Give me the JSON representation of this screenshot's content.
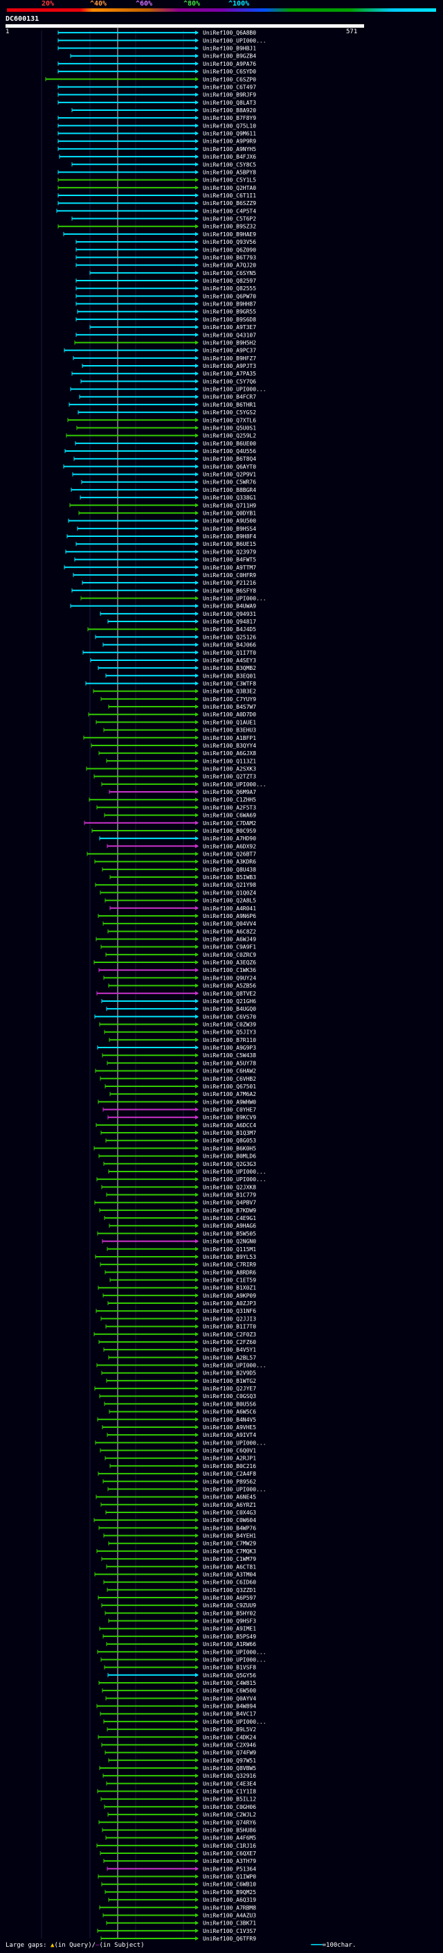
{
  "header": {
    "scale_ticks": [
      "20%",
      "^40%",
      "^60%",
      "^80%",
      "^100%"
    ],
    "query_id": "DC600131",
    "query_start": "1",
    "query_end": "571"
  },
  "footer": {
    "large_gaps": "Large gaps:",
    "in_query": "(in Query)/",
    "in_subject": "(in Subject)",
    "scale_legend": "=100char."
  },
  "colors": {
    "cyan": "#00e5ff",
    "green": "#33cc00",
    "magenta": "#cc33cc",
    "background": "#000010"
  },
  "hits": [
    {
      "label": "UniRef100_Q6A8B0",
      "color": "cyan"
    },
    {
      "label": "UniRef100_UPI000...",
      "color": "cyan"
    },
    {
      "label": "UniRef100_B9HBJ1",
      "color": "cyan"
    },
    {
      "label": "UniRef100_B9GZB4",
      "color": "cyan"
    },
    {
      "label": "UniRef100_A9PA76",
      "color": "cyan"
    },
    {
      "label": "UniRef100_C6SYD0",
      "color": "cyan"
    },
    {
      "label": "UniRef100_C6SZP0",
      "color": "green"
    },
    {
      "label": "UniRef100_C6T497",
      "color": "cyan"
    },
    {
      "label": "UniRef100_B9RJF9",
      "color": "cyan"
    },
    {
      "label": "UniRef100_Q8LAT3",
      "color": "cyan"
    },
    {
      "label": "UniRef100_B8A920",
      "color": "cyan"
    },
    {
      "label": "UniRef100_B7F8Y9",
      "color": "cyan"
    },
    {
      "label": "UniRef100_Q75L10",
      "color": "cyan"
    },
    {
      "label": "UniRef100_Q9M611",
      "color": "cyan"
    },
    {
      "label": "UniRef100_A9P9R9",
      "color": "cyan"
    },
    {
      "label": "UniRef100_A9NYH5",
      "color": "cyan"
    },
    {
      "label": "UniRef100_B4FJX6",
      "color": "cyan"
    },
    {
      "label": "UniRef100_C5Y8C5",
      "color": "cyan"
    },
    {
      "label": "UniRef100_A5BPY8",
      "color": "cyan"
    },
    {
      "label": "UniRef100_C5Y1L5",
      "color": "green"
    },
    {
      "label": "UniRef100_Q2HTA0",
      "color": "green"
    },
    {
      "label": "UniRef100_C6T1I1",
      "color": "cyan"
    },
    {
      "label": "UniRef100_B6SZZ9",
      "color": "cyan"
    },
    {
      "label": "UniRef100_C4P5T4",
      "color": "cyan"
    },
    {
      "label": "UniRef100_C5T6P2",
      "color": "cyan"
    },
    {
      "label": "UniRef100_B9SZ32",
      "color": "green"
    },
    {
      "label": "UniRef100_B9HAE9",
      "color": "cyan"
    },
    {
      "label": "UniRef100_Q93V56",
      "color": "cyan"
    },
    {
      "label": "UniRef100_Q6Z090",
      "color": "cyan"
    },
    {
      "label": "UniRef100_B6T793",
      "color": "cyan"
    },
    {
      "label": "UniRef100_A7QJ20",
      "color": "cyan"
    },
    {
      "label": "UniRef100_C6SYN5",
      "color": "cyan"
    },
    {
      "label": "UniRef100_Q82597",
      "color": "cyan"
    },
    {
      "label": "UniRef100_Q82555",
      "color": "cyan"
    },
    {
      "label": "UniRef100_Q6PW70",
      "color": "cyan"
    },
    {
      "label": "UniRef100_B9HH87",
      "color": "cyan"
    },
    {
      "label": "UniRef100_B9GR55",
      "color": "cyan"
    },
    {
      "label": "UniRef100_B9S6D8",
      "color": "cyan"
    },
    {
      "label": "UniRef100_A9T3E7",
      "color": "cyan"
    },
    {
      "label": "UniRef100_Q43107",
      "color": "cyan"
    },
    {
      "label": "UniRef100_B9H5H2",
      "color": "green"
    },
    {
      "label": "UniRef100_A9PC37",
      "color": "cyan"
    },
    {
      "label": "UniRef100_B9HFZ7",
      "color": "cyan"
    },
    {
      "label": "UniRef100_A9PJT3",
      "color": "cyan"
    },
    {
      "label": "UniRef100_A7PA35",
      "color": "cyan"
    },
    {
      "label": "UniRef100_C5Y7Q6",
      "color": "cyan"
    },
    {
      "label": "UniRef100_UPI000...",
      "color": "cyan"
    },
    {
      "label": "UniRef100_B4FCR7",
      "color": "cyan"
    },
    {
      "label": "UniRef100_B6THR1",
      "color": "cyan"
    },
    {
      "label": "UniRef100_C5YGS2",
      "color": "cyan"
    },
    {
      "label": "UniRef100_Q7XTL6",
      "color": "green"
    },
    {
      "label": "UniRef100_Q5U0S1",
      "color": "green"
    },
    {
      "label": "UniRef100_Q259L2",
      "color": "green"
    },
    {
      "label": "UniRef100_B6UE00",
      "color": "cyan"
    },
    {
      "label": "UniRef100_Q4U556",
      "color": "cyan"
    },
    {
      "label": "UniRef100_B6T8Q4",
      "color": "cyan"
    },
    {
      "label": "UniRef100_Q6AYT0",
      "color": "cyan"
    },
    {
      "label": "UniRef100_Q2P9V1",
      "color": "cyan"
    },
    {
      "label": "UniRef100_C5WR76",
      "color": "cyan"
    },
    {
      "label": "UniRef100_B8BGR4",
      "color": "cyan"
    },
    {
      "label": "UniRef100_Q338G1",
      "color": "cyan"
    },
    {
      "label": "UniRef100_Q711H9",
      "color": "green"
    },
    {
      "label": "UniRef100_Q0DYB1",
      "color": "green"
    },
    {
      "label": "UniRef100_A9U500",
      "color": "cyan"
    },
    {
      "label": "UniRef100_B9HSS4",
      "color": "cyan"
    },
    {
      "label": "UniRef100_B9H8F4",
      "color": "cyan"
    },
    {
      "label": "UniRef100_B6UE15",
      "color": "cyan"
    },
    {
      "label": "UniRef100_Q23979",
      "color": "cyan"
    },
    {
      "label": "UniRef100_B4FWT5",
      "color": "cyan"
    },
    {
      "label": "UniRef100_A9TTM7",
      "color": "cyan"
    },
    {
      "label": "UniRef100_C0HFR9",
      "color": "cyan"
    },
    {
      "label": "UniRef100_P21216",
      "color": "cyan"
    },
    {
      "label": "UniRef100_B6SFY8",
      "color": "cyan"
    },
    {
      "label": "UniRef100_UPI000...",
      "color": "green"
    },
    {
      "label": "UniRef100_B4UWA9",
      "color": "cyan"
    },
    {
      "label": "UniRef100_Q94931",
      "color": "cyan"
    },
    {
      "label": "UniRef100_Q94817",
      "color": "cyan"
    },
    {
      "label": "UniRef100_B4J4D5",
      "color": "green"
    },
    {
      "label": "UniRef100_Q25126",
      "color": "cyan"
    },
    {
      "label": "UniRef100_B4J066",
      "color": "cyan"
    },
    {
      "label": "UniRef100_Q1I7T0",
      "color": "cyan"
    },
    {
      "label": "UniRef100_A4SEY3",
      "color": "cyan"
    },
    {
      "label": "UniRef100_B3QMB2",
      "color": "cyan"
    },
    {
      "label": "UniRef100_B3EQ01",
      "color": "cyan"
    },
    {
      "label": "UniRef100_C3WTF8",
      "color": "cyan"
    },
    {
      "label": "UniRef100_Q3B3E2",
      "color": "green"
    },
    {
      "label": "UniRef100_C7YUY9",
      "color": "green"
    },
    {
      "label": "UniRef100_B4S7W7",
      "color": "green"
    },
    {
      "label": "UniRef100_A0D7D0",
      "color": "green"
    },
    {
      "label": "UniRef100_Q1AUE1",
      "color": "green"
    },
    {
      "label": "UniRef100_B3EHU3",
      "color": "green"
    },
    {
      "label": "UniRef100_A1BFP1",
      "color": "green"
    },
    {
      "label": "UniRef100_B3QYY4",
      "color": "green"
    },
    {
      "label": "UniRef100_A6GJX8",
      "color": "green"
    },
    {
      "label": "UniRef100_Q113Z1",
      "color": "green"
    },
    {
      "label": "UniRef100_A2SXK3",
      "color": "green"
    },
    {
      "label": "UniRef100_Q2TZT3",
      "color": "green"
    },
    {
      "label": "UniRef100_UPI000...",
      "color": "green"
    },
    {
      "label": "UniRef100_Q6M9A7",
      "color": "magenta"
    },
    {
      "label": "UniRef100_C1ZHH5",
      "color": "green"
    },
    {
      "label": "UniRef100_A2F5T3",
      "color": "green"
    },
    {
      "label": "UniRef100_C6WA69",
      "color": "green"
    },
    {
      "label": "UniRef100_C7DAM2",
      "color": "magenta"
    },
    {
      "label": "UniRef100_B0C9S9",
      "color": "green"
    },
    {
      "label": "UniRef100_A7HD90",
      "color": "cyan"
    },
    {
      "label": "UniRef100_A6DX92",
      "color": "magenta"
    },
    {
      "label": "UniRef100_Q26BT7",
      "color": "green"
    },
    {
      "label": "UniRef100_A3KDR6",
      "color": "green"
    },
    {
      "label": "UniRef100_Q8U438",
      "color": "green"
    },
    {
      "label": "UniRef100_B5IWB3",
      "color": "green"
    },
    {
      "label": "UniRef100_Q21Y98",
      "color": "green"
    },
    {
      "label": "UniRef100_Q1Q0Z4",
      "color": "green"
    },
    {
      "label": "UniRef100_Q2A8L5",
      "color": "green"
    },
    {
      "label": "UniRef100_A4R041",
      "color": "magenta"
    },
    {
      "label": "UniRef100_A9N6P6",
      "color": "green"
    },
    {
      "label": "UniRef100_Q04VV4",
      "color": "green"
    },
    {
      "label": "UniRef100_A6C8Z2",
      "color": "green"
    },
    {
      "label": "UniRef100_A6WJ49",
      "color": "green"
    },
    {
      "label": "UniRef100_C9A9F1",
      "color": "green"
    },
    {
      "label": "UniRef100_C0ZRC9",
      "color": "green"
    },
    {
      "label": "UniRef100_A3EQZ6",
      "color": "green"
    },
    {
      "label": "UniRef100_C1WK36",
      "color": "magenta"
    },
    {
      "label": "UniRef100_Q9UY24",
      "color": "green"
    },
    {
      "label": "UniRef100_A5ZB56",
      "color": "green"
    },
    {
      "label": "UniRef100_Q8TVE2",
      "color": "magenta"
    },
    {
      "label": "UniRef100_Q21GH6",
      "color": "cyan"
    },
    {
      "label": "UniRef100_B4UGQ0",
      "color": "cyan"
    },
    {
      "label": "UniRef100_C6VS70",
      "color": "cyan"
    },
    {
      "label": "UniRef100_C0ZW39",
      "color": "green"
    },
    {
      "label": "UniRef100_Q5JIY3",
      "color": "green"
    },
    {
      "label": "UniRef100_B7R110",
      "color": "green"
    },
    {
      "label": "UniRef100_A9G9P3",
      "color": "cyan"
    },
    {
      "label": "UniRef100_C5W438",
      "color": "green"
    },
    {
      "label": "UniRef100_A5UY78",
      "color": "green"
    },
    {
      "label": "UniRef100_C6HAW2",
      "color": "green"
    },
    {
      "label": "UniRef100_C6VHB2",
      "color": "green"
    },
    {
      "label": "UniRef100_Q67501",
      "color": "green"
    },
    {
      "label": "UniRef100_A7M6A2",
      "color": "green"
    },
    {
      "label": "UniRef100_A9WHW0",
      "color": "green"
    },
    {
      "label": "UniRef100_C0YHE7",
      "color": "magenta"
    },
    {
      "label": "UniRef100_B9KCV9",
      "color": "magenta"
    },
    {
      "label": "UniRef100_A6DCC4",
      "color": "green"
    },
    {
      "label": "UniRef100_B1Q3M7",
      "color": "green"
    },
    {
      "label": "UniRef100_Q8G053",
      "color": "green"
    },
    {
      "label": "UniRef100_B6K0H5",
      "color": "green"
    },
    {
      "label": "UniRef100_B0MLD6",
      "color": "green"
    },
    {
      "label": "UniRef100_Q2G3G3",
      "color": "green"
    },
    {
      "label": "UniRef100_UPI000...",
      "color": "green"
    },
    {
      "label": "UniRef100_UPI000...",
      "color": "green"
    },
    {
      "label": "UniRef100_Q2JXK8",
      "color": "green"
    },
    {
      "label": "UniRef100_B1C779",
      "color": "green"
    },
    {
      "label": "UniRef100_Q4PBV7",
      "color": "green"
    },
    {
      "label": "UniRef100_B7KDW9",
      "color": "green"
    },
    {
      "label": "UniRef100_C4E9G1",
      "color": "green"
    },
    {
      "label": "UniRef100_A9HAG6",
      "color": "green"
    },
    {
      "label": "UniRef100_B5W505",
      "color": "green"
    },
    {
      "label": "UniRef100_Q2NGN0",
      "color": "magenta"
    },
    {
      "label": "UniRef100_Q115M1",
      "color": "green"
    },
    {
      "label": "UniRef100_B9YL53",
      "color": "green"
    },
    {
      "label": "UniRef100_C7RIR9",
      "color": "green"
    },
    {
      "label": "UniRef100_A8RDR6",
      "color": "green"
    },
    {
      "label": "UniRef100_C1ET59",
      "color": "green"
    },
    {
      "label": "UniRef100_B1X0Z1",
      "color": "green"
    },
    {
      "label": "UniRef100_A9KP09",
      "color": "green"
    },
    {
      "label": "UniRef100_A0ZJP3",
      "color": "green"
    },
    {
      "label": "UniRef100_Q31NF6",
      "color": "green"
    },
    {
      "label": "UniRef100_Q2JJI3",
      "color": "green"
    },
    {
      "label": "UniRef100_B1I7T0",
      "color": "green"
    },
    {
      "label": "UniRef100_C2F0Z3",
      "color": "green"
    },
    {
      "label": "UniRef100_C2FZ60",
      "color": "green"
    },
    {
      "label": "UniRef100_B4V5Y1",
      "color": "green"
    },
    {
      "label": "UniRef100_A2BL57",
      "color": "green"
    },
    {
      "label": "UniRef100_UPI000...",
      "color": "green"
    },
    {
      "label": "UniRef100_B2V9D5",
      "color": "green"
    },
    {
      "label": "UniRef100_B1WTG2",
      "color": "green"
    },
    {
      "label": "UniRef100_Q2JYE7",
      "color": "green"
    },
    {
      "label": "UniRef100_C0GSQ3",
      "color": "green"
    },
    {
      "label": "UniRef100_B0U5S6",
      "color": "green"
    },
    {
      "label": "UniRef100_A6W5C6",
      "color": "green"
    },
    {
      "label": "UniRef100_B4N4V5",
      "color": "green"
    },
    {
      "label": "UniRef100_A9VHE5",
      "color": "green"
    },
    {
      "label": "UniRef100_A9IVT4",
      "color": "green"
    },
    {
      "label": "UniRef100_UPI000...",
      "color": "green"
    },
    {
      "label": "UniRef100_C6Q0V1",
      "color": "green"
    },
    {
      "label": "UniRef100_A2RJP1",
      "color": "green"
    },
    {
      "label": "UniRef100_B0C216",
      "color": "green"
    },
    {
      "label": "UniRef100_C2A4F8",
      "color": "green"
    },
    {
      "label": "UniRef100_P89562",
      "color": "green"
    },
    {
      "label": "UniRef100_UPI000...",
      "color": "green"
    },
    {
      "label": "UniRef100_A6NE45",
      "color": "green"
    },
    {
      "label": "UniRef100_A6YRZ1",
      "color": "green"
    },
    {
      "label": "UniRef100_C0X4G3",
      "color": "green"
    },
    {
      "label": "UniRef100_C0W604",
      "color": "green"
    },
    {
      "label": "UniRef100_B4WP76",
      "color": "green"
    },
    {
      "label": "UniRef100_B4YEH1",
      "color": "green"
    },
    {
      "label": "UniRef100_C7MW29",
      "color": "green"
    },
    {
      "label": "UniRef100_C7MQK3",
      "color": "green"
    },
    {
      "label": "UniRef100_C1WM79",
      "color": "green"
    },
    {
      "label": "UniRef100_A6CT81",
      "color": "green"
    },
    {
      "label": "UniRef100_A3TM04",
      "color": "green"
    },
    {
      "label": "UniRef100_C6ID60",
      "color": "green"
    },
    {
      "label": "UniRef100_Q3ZZD1",
      "color": "green"
    },
    {
      "label": "UniRef100_A6P597",
      "color": "green"
    },
    {
      "label": "UniRef100_C9ZUU9",
      "color": "green"
    },
    {
      "label": "UniRef100_B5HY02",
      "color": "green"
    },
    {
      "label": "UniRef100_Q9HSF3",
      "color": "green"
    },
    {
      "label": "UniRef100_A9IME1",
      "color": "green"
    },
    {
      "label": "UniRef100_B5PS49",
      "color": "green"
    },
    {
      "label": "UniRef100_A1RW66",
      "color": "green"
    },
    {
      "label": "UniRef100_UPI000...",
      "color": "green"
    },
    {
      "label": "UniRef100_UPI000...",
      "color": "green"
    },
    {
      "label": "UniRef100_B1VSF8",
      "color": "green"
    },
    {
      "label": "UniRef100_Q5GY56",
      "color": "cyan"
    },
    {
      "label": "UniRef100_C4W815",
      "color": "green"
    },
    {
      "label": "UniRef100_C6W500",
      "color": "green"
    },
    {
      "label": "UniRef100_Q0AYV4",
      "color": "green"
    },
    {
      "label": "UniRef100_B4W894",
      "color": "green"
    },
    {
      "label": "UniRef100_B4VC17",
      "color": "green"
    },
    {
      "label": "UniRef100_UPI000...",
      "color": "green"
    },
    {
      "label": "UniRef100_B9L5V2",
      "color": "green"
    },
    {
      "label": "UniRef100_C4DK24",
      "color": "green"
    },
    {
      "label": "UniRef100_C2X946",
      "color": "green"
    },
    {
      "label": "UniRef100_Q74FW9",
      "color": "green"
    },
    {
      "label": "UniRef100_Q97W51",
      "color": "green"
    },
    {
      "label": "UniRef100_Q8VBW5",
      "color": "green"
    },
    {
      "label": "UniRef100_Q32916",
      "color": "green"
    },
    {
      "label": "UniRef100_C4E3E4",
      "color": "green"
    },
    {
      "label": "UniRef100_C1Y1I8",
      "color": "green"
    },
    {
      "label": "UniRef100_B5IL12",
      "color": "green"
    },
    {
      "label": "UniRef100_C0GH06",
      "color": "green"
    },
    {
      "label": "UniRef100_C2WJL2",
      "color": "green"
    },
    {
      "label": "UniRef100_Q74RY6",
      "color": "green"
    },
    {
      "label": "UniRef100_B5HU86",
      "color": "green"
    },
    {
      "label": "UniRef100_A4F6M5",
      "color": "green"
    },
    {
      "label": "UniRef100_C1RJ16",
      "color": "green"
    },
    {
      "label": "UniRef100_C6QXE7",
      "color": "green"
    },
    {
      "label": "UniRef100_A3TH79",
      "color": "green"
    },
    {
      "label": "UniRef100_P51364",
      "color": "magenta"
    },
    {
      "label": "UniRef100_Q1IWP0",
      "color": "green"
    },
    {
      "label": "UniRef100_C6WB10",
      "color": "green"
    },
    {
      "label": "UniRef100_B9QM25",
      "color": "green"
    },
    {
      "label": "UniRef100_A6Q319",
      "color": "green"
    },
    {
      "label": "UniRef100_A7RBM8",
      "color": "green"
    },
    {
      "label": "UniRef100_A4AZU3",
      "color": "green"
    },
    {
      "label": "UniRef100_C3BK71",
      "color": "green"
    },
    {
      "label": "UniRef100_C1V3S7",
      "color": "green"
    },
    {
      "label": "UniRef100_Q6TFR9",
      "color": "green"
    }
  ]
}
